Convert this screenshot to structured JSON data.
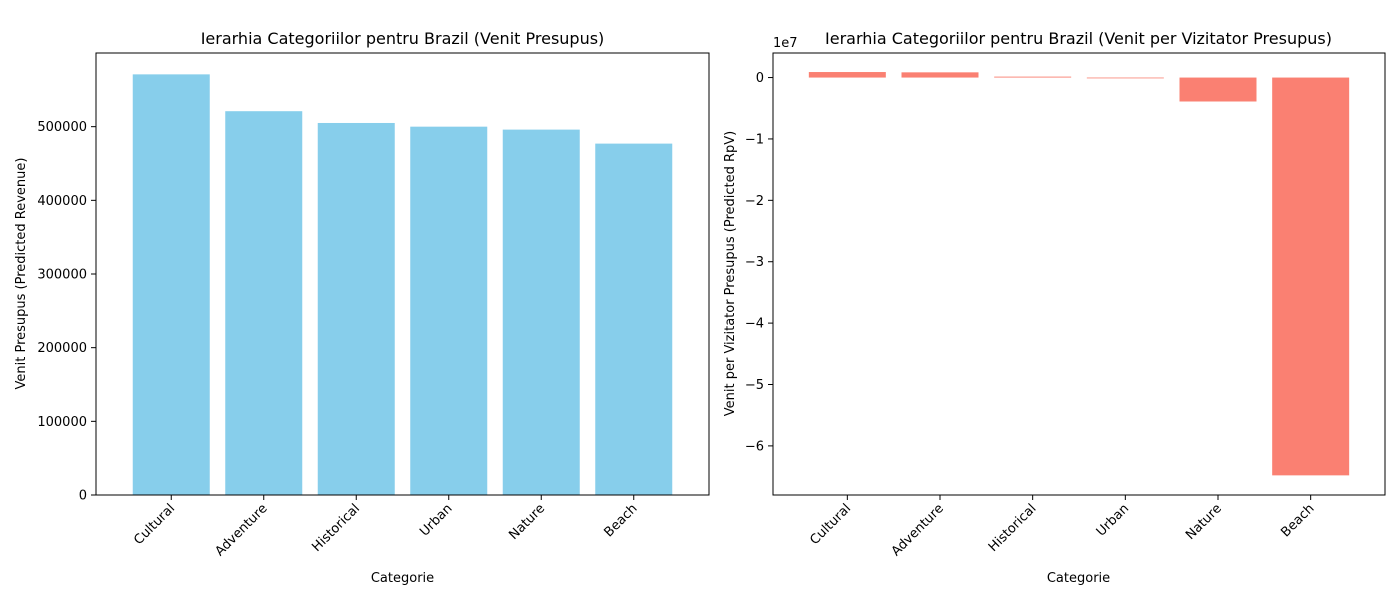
{
  "chart_data": [
    {
      "type": "bar",
      "title": "Ierarhia Categoriilor pentru Brazil (Venit Presupus)",
      "xlabel": "Categorie",
      "ylabel": "Venit Presupus (Predicted Revenue)",
      "categories": [
        "Cultural",
        "Adventure",
        "Historical",
        "Urban",
        "Nature",
        "Beach"
      ],
      "values": [
        571000,
        521000,
        505000,
        500000,
        496000,
        477000
      ],
      "ylim": [
        0,
        600000
      ],
      "yticks": [
        0,
        100000,
        200000,
        300000,
        400000,
        500000
      ],
      "ytick_labels": [
        "0",
        "100000",
        "200000",
        "300000",
        "400000",
        "500000"
      ],
      "offset_label": "",
      "color": "#87ceeb",
      "grid": false,
      "xtick_rotation": 45
    },
    {
      "type": "bar",
      "title": "Ierarhia Categoriilor pentru Brazil (Venit per Vizitator Presupus)",
      "xlabel": "Categorie",
      "ylabel": "Venit per Vizitator Presupus (Predicted RpV)",
      "categories": [
        "Cultural",
        "Adventure",
        "Historical",
        "Urban",
        "Nature",
        "Beach"
      ],
      "values": [
        900000,
        850000,
        150000,
        0,
        -3900000,
        -64800000
      ],
      "ylim": [
        -68000000,
        4000000
      ],
      "yticks": [
        0,
        -10000000,
        -20000000,
        -30000000,
        -40000000,
        -50000000,
        -60000000
      ],
      "ytick_labels": [
        "0",
        "−1",
        "−2",
        "−3",
        "−4",
        "−5",
        "−6"
      ],
      "offset_label": "1e7",
      "color": "#fa8072",
      "grid": false,
      "xtick_rotation": 45
    }
  ]
}
